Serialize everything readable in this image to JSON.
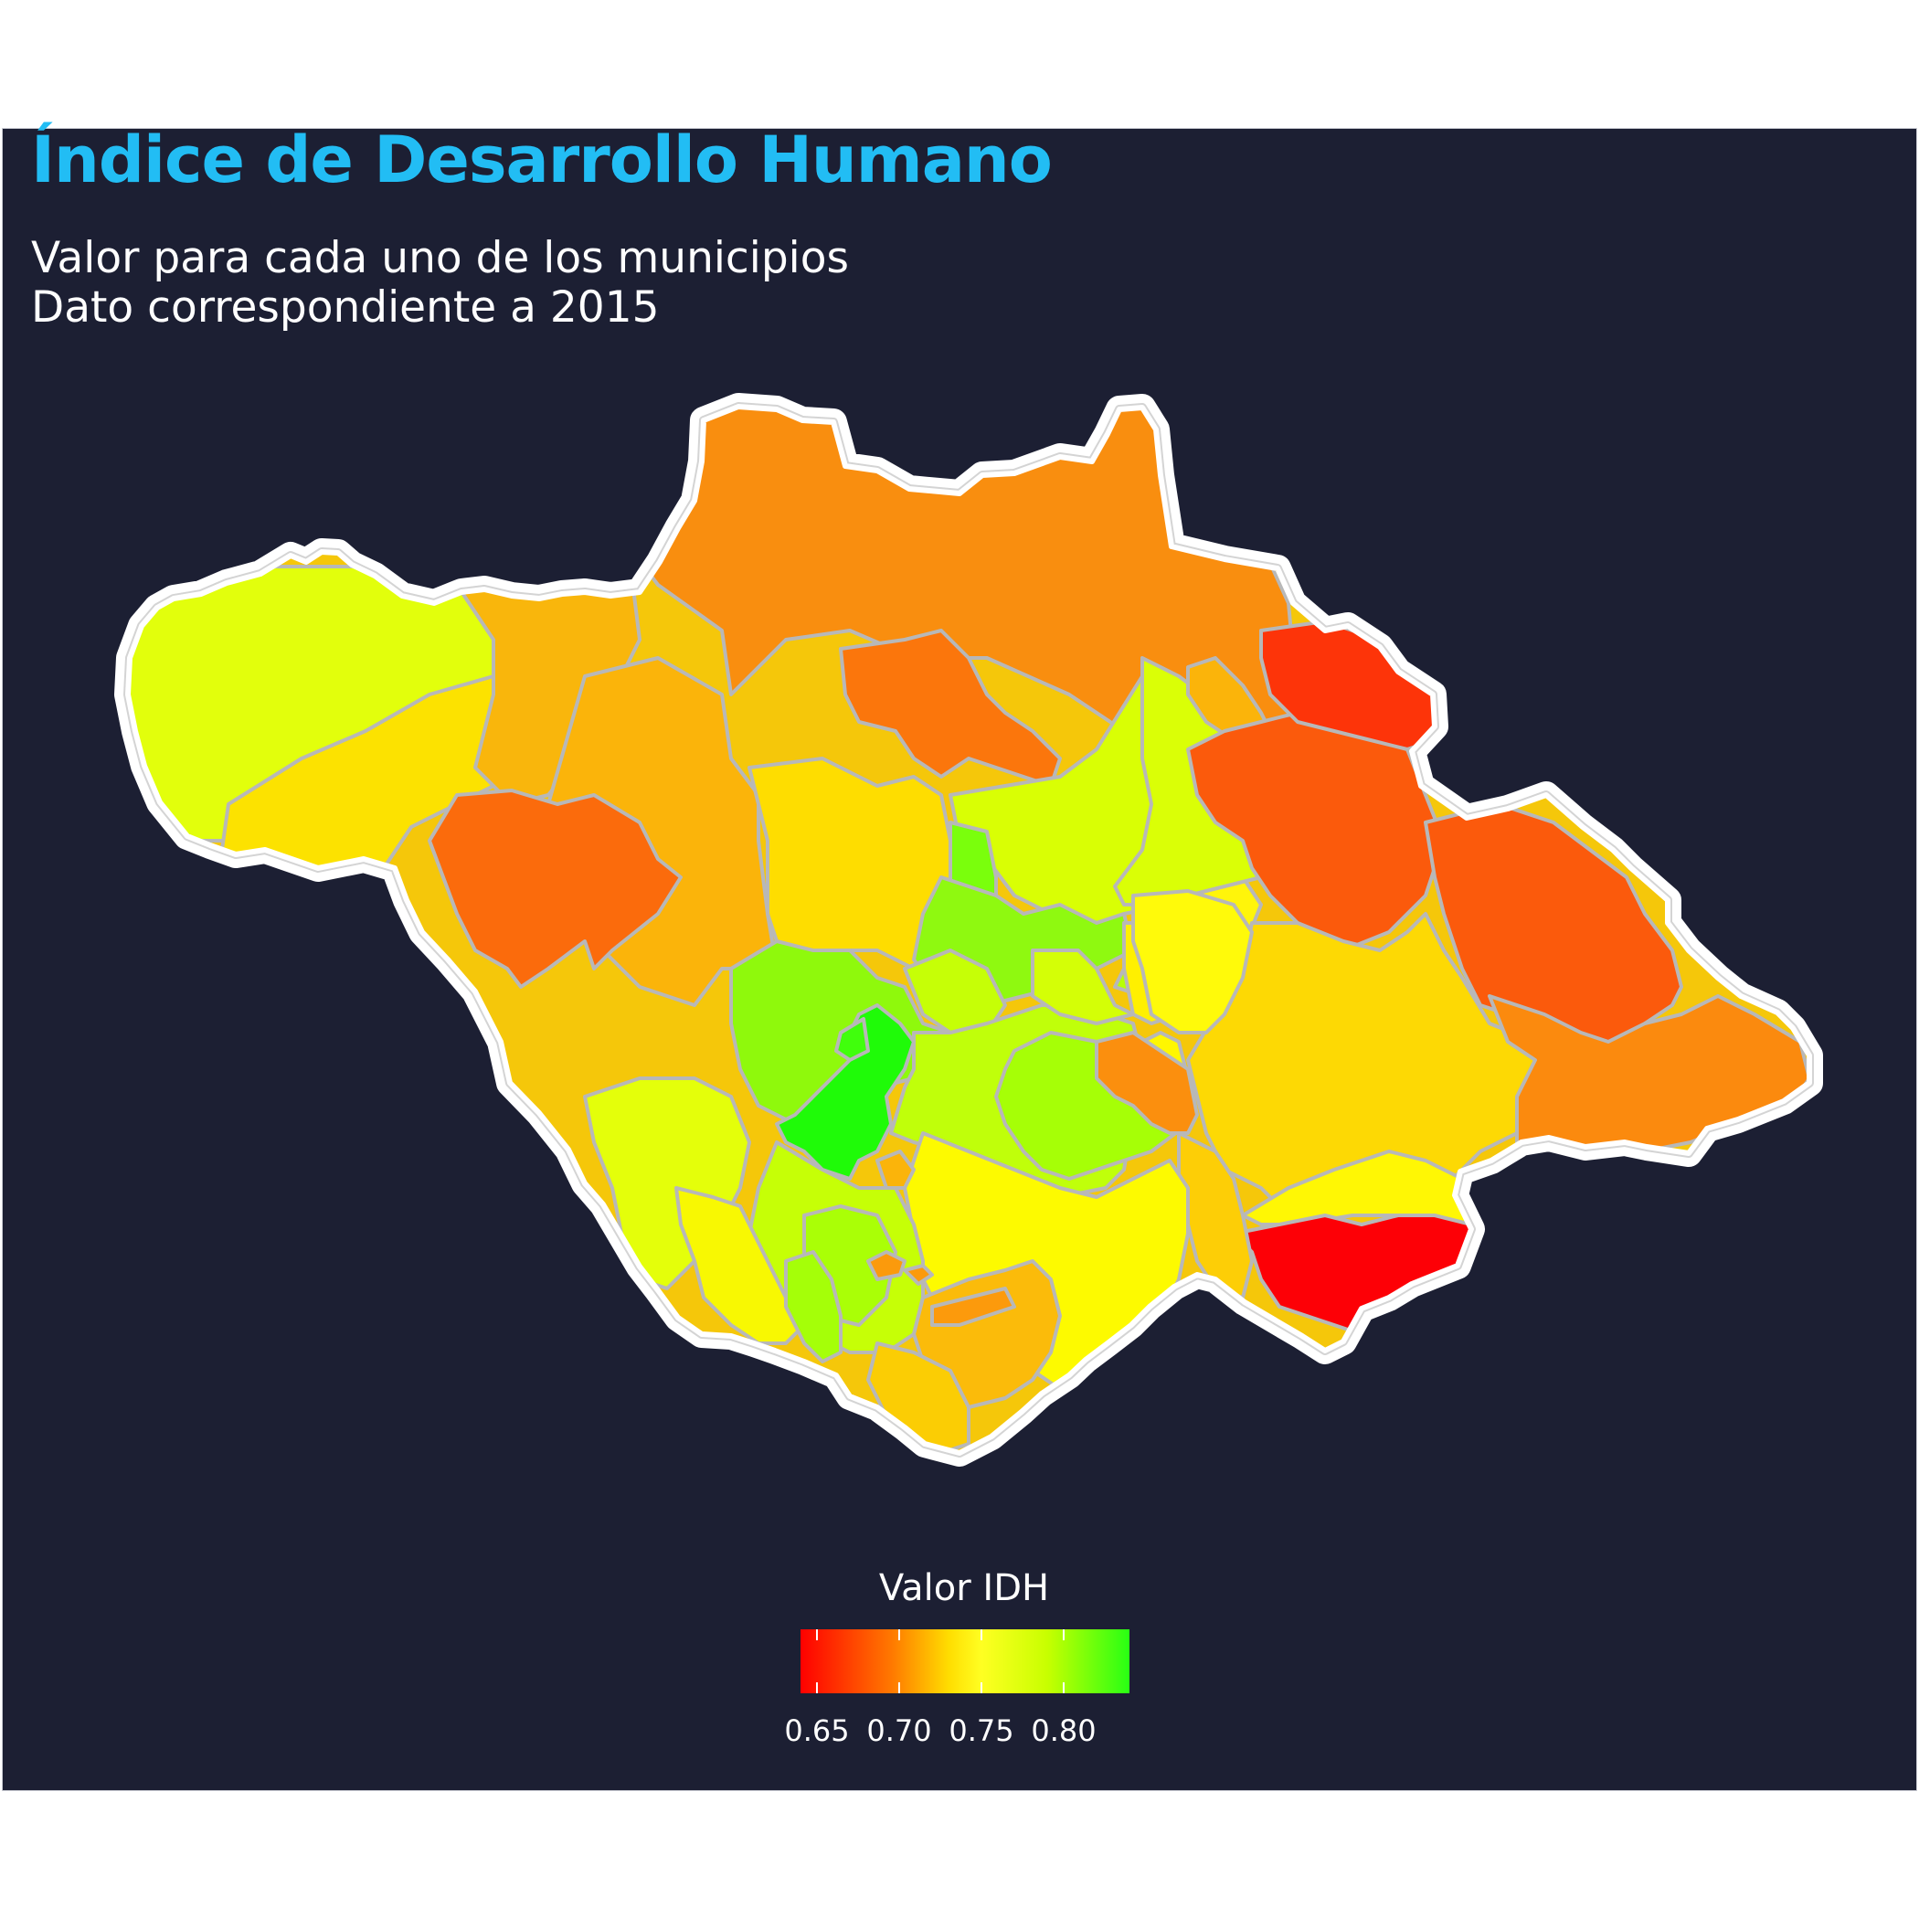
{
  "title": "Índice de Desarrollo Humano",
  "subtitle_lines": [
    "Valor para cada uno de los municipios",
    "Dato correspondiente a 2015"
  ],
  "legend": {
    "title": "Valor IDH",
    "ticks": [
      "0.65",
      "0.70",
      "0.75",
      "0.80"
    ],
    "tick_values": [
      0.65,
      0.7,
      0.75,
      0.8
    ],
    "range": [
      0.64,
      0.84
    ],
    "colors": {
      "low": "#ff0000",
      "mid_low": "#ff7a00",
      "mid": "#ffff22",
      "high": "#28ff14"
    }
  },
  "colors": {
    "background": "#1c1f33",
    "title": "#22bdf4",
    "text": "#ffffff",
    "outline": "#ffffff",
    "borders": "#b8b8b8"
  }
}
